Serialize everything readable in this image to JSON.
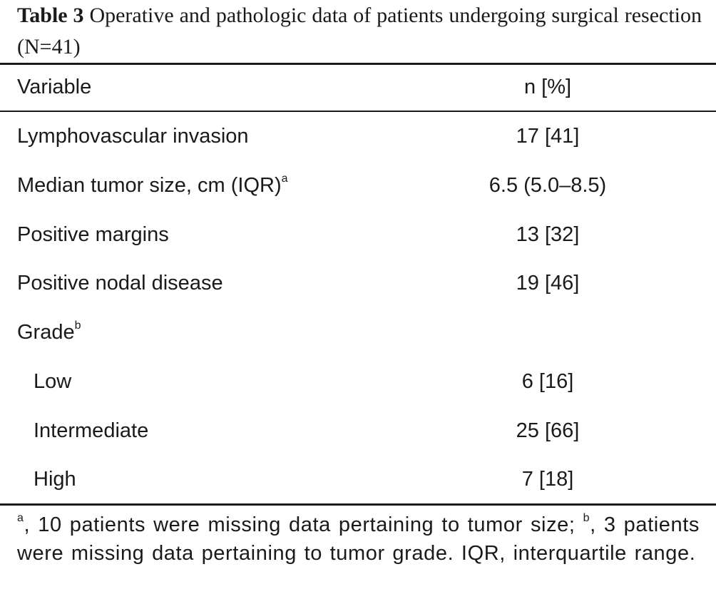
{
  "caption": {
    "table_number": "Table 3",
    "title": "Operative and pathologic data of patients undergoing surgical resection (N=41)"
  },
  "table": {
    "headers": [
      "Variable",
      "n [%]"
    ],
    "rows": [
      {
        "label": "Lymphovascular invasion",
        "sup": "",
        "value": "17 [41]",
        "indent": false
      },
      {
        "label": "Median tumor size, cm (IQR)",
        "sup": "a",
        "value": "6.5 (5.0–8.5)",
        "indent": false
      },
      {
        "label": "Positive margins",
        "sup": "",
        "value": "13 [32]",
        "indent": false
      },
      {
        "label": "Positive nodal disease",
        "sup": "",
        "value": "19 [46]",
        "indent": false
      },
      {
        "label": "Grade",
        "sup": "b",
        "value": "",
        "indent": false
      },
      {
        "label": "Low",
        "sup": "",
        "value": "6 [16]",
        "indent": true
      },
      {
        "label": "Intermediate",
        "sup": "",
        "value": "25 [66]",
        "indent": true
      },
      {
        "label": "High",
        "sup": "",
        "value": "7 [18]",
        "indent": true
      }
    ]
  },
  "footnote": {
    "marker_a": "a",
    "text_a": ", 10 patients were missing data pertaining to tumor size; ",
    "marker_b": "b",
    "text_b": ", 3 patients were missing data pertaining to tumor grade. IQR, interquartile range."
  }
}
